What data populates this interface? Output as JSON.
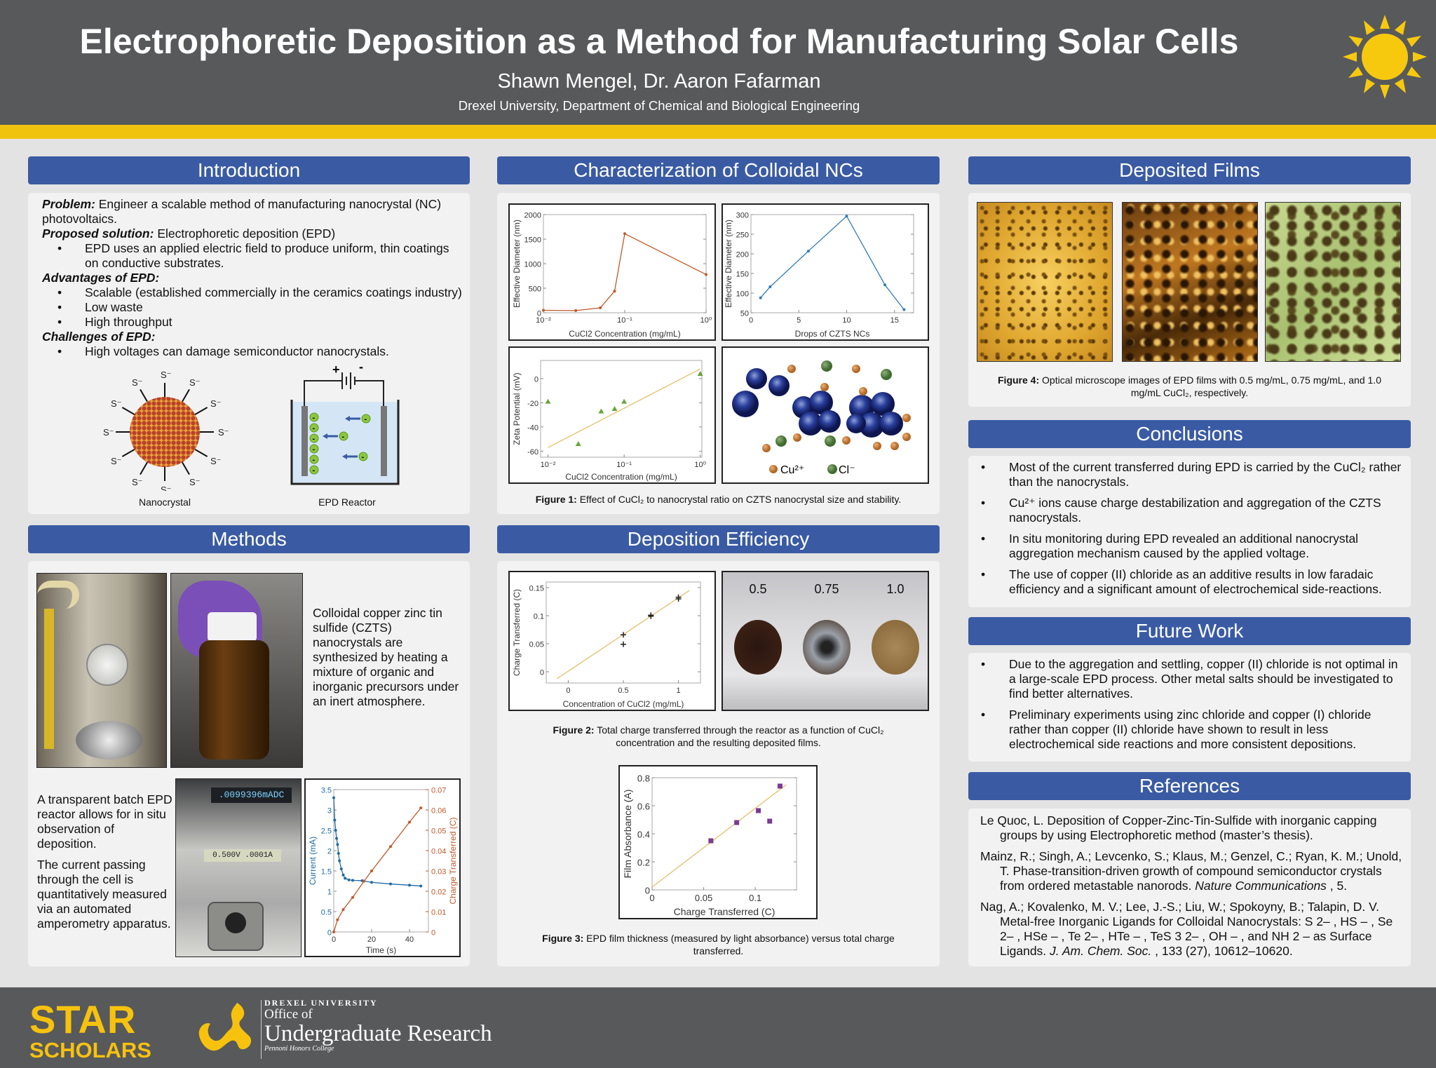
{
  "header": {
    "title": "Electrophoretic Deposition as a Method for Manufacturing Solar Cells",
    "authors": "Shawn Mengel, Dr. Aaron Fafarman",
    "affiliation": "Drexel University, Department of Chemical and Biological Engineering",
    "icon": "sun-icon"
  },
  "colors": {
    "header_bg": "#58595b",
    "band": "#f0c30f",
    "section": "#3a5ba4",
    "panel": "#f2f2f2"
  },
  "introduction": {
    "heading": "Introduction",
    "problem_label": "Problem:",
    "problem_text": " Engineer a scalable method of manufacturing nanocrystal (NC) photovoltaics.",
    "solution_label": "Proposed solution:",
    "solution_text": " Electrophoretic deposition (EPD)",
    "solution_bullets": [
      "EPD uses an applied electric field to produce uniform, thin coatings on conductive substrates."
    ],
    "advantages_label": "Advantages of EPD:",
    "advantages": [
      "Scalable (established commercially in the ceramics coatings industry)",
      "Low waste",
      "High throughput"
    ],
    "challenges_label": "Challenges of EPD:",
    "challenges": [
      "High voltages can damage semiconductor nanocrystals."
    ],
    "ligand_label": "S⁻",
    "battery_plus": "+",
    "battery_minus": "-",
    "nc_particle_charge": "-",
    "nanocrystal_caption": "Nanocrystal",
    "reactor_caption": "EPD Reactor"
  },
  "methods": {
    "heading": "Methods",
    "synthesis_text": "Colloidal copper zinc tin sulfide (CZTS) nanocrystals are synthesized by heating a mixture of organic and inorganic precursors under an inert atmosphere.",
    "reactor_text": "A transparent batch EPD reactor allows for in situ observation of deposition.",
    "current_text": "The current passing through the cell is quantitatively measured via an automated amperometry apparatus.",
    "meter_readout_1": ".0099396mADC",
    "meter_readout_2": "0.500V .0001A"
  },
  "characterization": {
    "heading": "Characterization of Colloidal NCs",
    "legend_cu": "Cu²⁺",
    "legend_cl": "Cl⁻",
    "caption_label": "Figure 1:",
    "caption": "  Effect of CuCl₂ to nanocrystal ratio on CZTS nanocrystal size and stability."
  },
  "deposition": {
    "heading": "Deposition Efficiency",
    "film_labels": [
      "0.5",
      "0.75",
      "1.0"
    ],
    "fig2_label": "Figure 2:",
    "fig2_caption": "  Total charge transferred through the reactor as a function of CuCl₂ concentration and the resulting deposited films.",
    "fig3_label": "Figure 3:",
    "fig3_caption": "  EPD film thickness (measured by light absorbance) versus total charge transferred."
  },
  "deposited_films": {
    "heading": "Deposited Films",
    "fig4_label": "Figure 4:",
    "fig4_caption": "  Optical microscope images of EPD films with 0.5 mg/mL, 0.75 mg/mL, and 1.0 mg/mL CuCl₂, respectively."
  },
  "conclusions": {
    "heading": "Conclusions",
    "items": [
      "Most of the current transferred during EPD is carried by the CuCl₂ rather than the nanocrystals.",
      "Cu²⁺ ions cause charge destabilization and aggregation of the CZTS nanocrystals.",
      "In situ monitoring during EPD revealed an additional nanocrystal aggregation mechanism caused by the applied voltage.",
      "The use of copper (II) chloride as an additive results in low faradaic efficiency and a significant amount of electrochemical side-reactions."
    ]
  },
  "future_work": {
    "heading": "Future Work",
    "items": [
      "Due to the aggregation and settling, copper (II) chloride is not optimal in a large-scale EPD process. Other metal salts should be investigated to find better alternatives.",
      "Preliminary experiments using zinc chloride and copper (I) chloride rather than copper (II) chloride have shown to result in less electrochemical side reactions and more consistent depositions."
    ]
  },
  "references": {
    "heading": "References",
    "items": [
      {
        "text": "Le Quoc, L. Deposition of Copper-Zinc-Tin-Sulfide with inorganic capping groups by using Electrophoretic method (master’s thesis).",
        "journal": "",
        "tail": ""
      },
      {
        "text": "Mainz, R.; Singh, A.; Levcenko, S.; Klaus, M.; Genzel, C.; Ryan, K. M.; Unold, T. Phase-transition-driven growth of compound semiconductor crystals from ordered metastable nanorods. ",
        "journal": "Nature Communications",
        "tail": " , 5."
      },
      {
        "text": "Nag, A.; Kovalenko, M. V.; Lee, J.-S.; Liu, W.; Spokoyny, B.; Talapin, D. V. Metal-free Inorganic Ligands for Colloidal Nanocrystals: S 2– , HS – , Se 2– , HSe – , Te 2– , HTe – , TeS 3 2– , OH – , and NH 2 – as Surface Ligands. ",
        "journal": "J. Am. Chem. Soc.",
        "tail": " , 133 (27), 10612–10620."
      }
    ]
  },
  "footer": {
    "star_logo_line1": "STAR",
    "star_logo_line2": "SCHOLARS",
    "drexel_line1": "DREXEL UNIVERSITY",
    "drexel_line2": "Office of",
    "drexel_line3": "Undergraduate Research",
    "drexel_line4": "Pennoni Honors College"
  },
  "chart_data": [
    {
      "type": "line",
      "title": "",
      "xlabel": "CuCl2 Concentration (mg/mL)",
      "ylabel": "Effective Diameter (nm)",
      "xscale": "log",
      "xlim": [
        0.01,
        1
      ],
      "ylim": [
        0,
        2000
      ],
      "xticks": [
        0.01,
        0.1,
        1
      ],
      "xtick_labels": [
        "10⁻²",
        "10⁻¹",
        "10⁰"
      ],
      "yticks": [
        0,
        500,
        1000,
        1500,
        2000
      ],
      "ytick_labels": [
        "0",
        "500",
        "1000",
        "1500",
        "2000"
      ],
      "series": [
        {
          "name": "Effective diameter",
          "mode": "line",
          "marker": "dot",
          "color": "#c0582a",
          "x": [
            0.01,
            0.025,
            0.05,
            0.075,
            0.1,
            1
          ],
          "y": [
            50,
            45,
            100,
            440,
            1610,
            780
          ]
        }
      ]
    },
    {
      "type": "line",
      "title": "",
      "xlabel": "Drops of CZTS NCs",
      "ylabel": "Effective Diameter (nm)",
      "xscale": "linear",
      "xlim": [
        0,
        17
      ],
      "ylim": [
        50,
        300
      ],
      "xticks": [
        0,
        5,
        10,
        15
      ],
      "xtick_labels": [
        "0",
        "5",
        "10",
        "15"
      ],
      "yticks": [
        50,
        100,
        150,
        200,
        250,
        300
      ],
      "ytick_labels": [
        "50",
        "100",
        "150",
        "200",
        "250",
        "300"
      ],
      "series": [
        {
          "name": "Effective diameter",
          "mode": "line",
          "marker": "dot",
          "color": "#2f7bb5",
          "x": [
            1,
            2,
            6,
            10,
            14,
            16
          ],
          "y": [
            88,
            116,
            207,
            296,
            121,
            58
          ]
        }
      ]
    },
    {
      "type": "scatter",
      "title": "",
      "xlabel": "CuCl2 Concentration (mg/mL)",
      "ylabel": "Zeta Potential (mV)",
      "xscale": "log",
      "xlim": [
        0.008,
        1.05
      ],
      "ylim": [
        -65,
        15
      ],
      "xticks": [
        0.01,
        0.1,
        1
      ],
      "xtick_labels": [
        "10⁻²",
        "10⁻¹",
        "10⁰"
      ],
      "yticks": [
        -60,
        -40,
        -20,
        0
      ],
      "ytick_labels": [
        "-60",
        "-40",
        "-20",
        "0"
      ],
      "fit": {
        "x": [
          0.01,
          1
        ],
        "y": [
          -57,
          8
        ],
        "color": "#e3bf6a"
      },
      "series": [
        {
          "name": "Zeta potential",
          "mode": "scatter",
          "marker": "triangle",
          "color": "#6aa33a",
          "x": [
            0.01,
            0.025,
            0.05,
            0.075,
            0.1,
            1
          ],
          "y": [
            -19,
            -54,
            -27,
            -25,
            -19,
            4
          ]
        }
      ]
    },
    {
      "type": "scatter",
      "title": "",
      "xlabel": "Concentration of CuCl2 (mg/mL)",
      "ylabel": "Charge Transferred (C)",
      "xscale": "linear",
      "xlim": [
        -0.2,
        1.2
      ],
      "ylim": [
        -0.02,
        0.16
      ],
      "xticks": [
        0,
        0.5,
        1
      ],
      "xtick_labels": [
        "0",
        "0.5",
        "1"
      ],
      "yticks": [
        0,
        0.05,
        0.1,
        0.15
      ],
      "ytick_labels": [
        "0",
        "0.05",
        "0.1",
        "0.15"
      ],
      "fit": {
        "x": [
          -0.1,
          1.1
        ],
        "y": [
          -0.012,
          0.145
        ],
        "color": "#e3bf6a"
      },
      "series": [
        {
          "name": "Charge transferred",
          "mode": "scatter",
          "marker": "plus",
          "color": "#222222",
          "x": [
            0.5,
            0.5,
            0.75,
            0.75,
            1,
            1
          ],
          "y": [
            0.049,
            0.066,
            0.099,
            0.101,
            0.13,
            0.133
          ]
        }
      ]
    },
    {
      "type": "scatter",
      "title": "",
      "xlabel": "Charge Transferred (C)",
      "ylabel": "Film Absorbance (A)",
      "xscale": "linear",
      "xlim": [
        0,
        0.14
      ],
      "ylim": [
        0,
        0.8
      ],
      "xticks": [
        0,
        0.05,
        0.1
      ],
      "xtick_labels": [
        "0",
        "0.05",
        "0.1"
      ],
      "yticks": [
        0,
        0.2,
        0.4,
        0.6,
        0.8
      ],
      "ytick_labels": [
        "0",
        "0.2",
        "0.4",
        "0.6",
        "0.8"
      ],
      "fit": {
        "x": [
          0,
          0.13
        ],
        "y": [
          0.02,
          0.75
        ],
        "color": "#e3bf6a"
      },
      "series": [
        {
          "name": "Film absorbance",
          "mode": "scatter",
          "marker": "square",
          "color": "#7a3a92",
          "x": [
            0.057,
            0.082,
            0.103,
            0.114,
            0.124
          ],
          "y": [
            0.35,
            0.48,
            0.565,
            0.49,
            0.74
          ]
        }
      ]
    },
    {
      "type": "line",
      "title": "",
      "xlabel": "Time (s)",
      "ylabel": "Current (mA)",
      "y2label": "Charge Transferred (C)",
      "xscale": "linear",
      "xlim": [
        0,
        50
      ],
      "ylim": [
        0,
        3.5
      ],
      "y2lim": [
        0,
        0.07
      ],
      "xticks": [
        0,
        20,
        40
      ],
      "xtick_labels": [
        "0",
        "20",
        "40"
      ],
      "yticks": [
        0,
        0.5,
        1,
        1.5,
        2,
        2.5,
        3,
        3.5
      ],
      "ytick_labels": [
        "0",
        "0.5",
        "1",
        "1.5",
        "2",
        "2.5",
        "3",
        "3.5"
      ],
      "y2ticks": [
        0,
        0.01,
        0.02,
        0.03,
        0.04,
        0.05,
        0.06,
        0.07
      ],
      "y2tick_labels": [
        "0",
        "0.01",
        "0.02",
        "0.03",
        "0.04",
        "0.05",
        "0.06",
        "0.07"
      ],
      "ycolor": "#1f6aa5",
      "y2color": "#c0582a",
      "series": [
        {
          "name": "Current",
          "mode": "line",
          "marker": "dot",
          "axis": "y",
          "color": "#1f6aa5",
          "x": [
            0,
            0.5,
            1,
            1.5,
            2,
            2.5,
            3,
            4,
            5,
            6,
            8,
            10,
            15,
            20,
            30,
            40,
            46
          ],
          "y": [
            3.3,
            2.75,
            2.5,
            2.3,
            2.15,
            1.93,
            1.75,
            1.55,
            1.4,
            1.32,
            1.28,
            1.27,
            1.26,
            1.22,
            1.18,
            1.15,
            1.13
          ]
        },
        {
          "name": "Charge transferred",
          "mode": "line",
          "marker": "dot",
          "axis": "y2",
          "color": "#c0582a",
          "x": [
            0,
            2,
            5,
            10,
            16,
            20,
            30,
            40,
            46
          ],
          "y": [
            0,
            0.006,
            0.011,
            0.017,
            0.025,
            0.03,
            0.042,
            0.054,
            0.061
          ]
        }
      ]
    }
  ]
}
